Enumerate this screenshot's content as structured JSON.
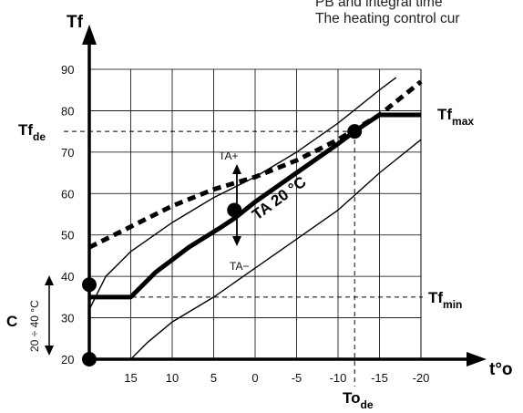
{
  "header": {
    "line1": "PB and integral time",
    "line2": "The heating control cur"
  },
  "chart_data": {
    "type": "line",
    "x_axis_label": "t°o",
    "y_axis_label": "Tf",
    "x_ticks": [
      "15",
      "10",
      "5",
      "0",
      "-5",
      "-10",
      "-15",
      "-20"
    ],
    "y_ticks": [
      "20",
      "30",
      "40",
      "50",
      "60",
      "70",
      "80",
      "90"
    ],
    "xlim": [
      20,
      -20
    ],
    "ylim": [
      20,
      90
    ],
    "grid": true,
    "series": [
      {
        "name": "TA 20 °C",
        "style": "thick",
        "x": [
          20,
          15,
          12,
          8,
          4,
          2.5,
          0,
          -5,
          -10,
          -12,
          -15,
          -20
        ],
        "y": [
          35,
          35,
          41,
          47,
          52,
          54,
          58,
          65,
          72,
          75,
          79,
          79
        ]
      },
      {
        "name": "TA+",
        "style": "thin",
        "x": [
          20,
          18,
          15,
          10,
          5,
          0,
          -5,
          -10,
          -15,
          -17
        ],
        "y": [
          32,
          40,
          46,
          53,
          59,
          64,
          70,
          77,
          85,
          88
        ]
      },
      {
        "name": "TA−",
        "style": "thin",
        "x": [
          15,
          13,
          10,
          5,
          0,
          -5,
          -10,
          -15,
          -20
        ],
        "y": [
          20,
          24,
          29,
          35,
          42,
          49,
          56,
          65,
          73
        ]
      },
      {
        "name": "",
        "style": "dotted",
        "x": [
          20,
          15,
          10,
          5,
          0,
          -5,
          -10,
          -15,
          -20
        ],
        "y": [
          47,
          52,
          57,
          61,
          64,
          68,
          73,
          79,
          87
        ]
      }
    ],
    "points": [
      {
        "x": 20,
        "y": 20
      },
      {
        "x": 20,
        "y": 38
      },
      {
        "x": 2.5,
        "y": 56
      },
      {
        "x": -12,
        "y": 75
      }
    ],
    "reference_lines": [
      {
        "label": "Tf",
        "label_sub": "de",
        "y": 75
      },
      {
        "label": "Tf",
        "label_sub": "min",
        "y": 35
      },
      {
        "label": "Tf",
        "label_sub": "max",
        "y": 79
      },
      {
        "label": "To",
        "label_sub": "de",
        "x": -12
      }
    ],
    "annotations": {
      "curve_label": "TA 20 °C",
      "ta_plus": "TA+",
      "ta_minus": "TA−",
      "c_label": "C",
      "c_range": "20 ÷ 40 °C"
    }
  }
}
